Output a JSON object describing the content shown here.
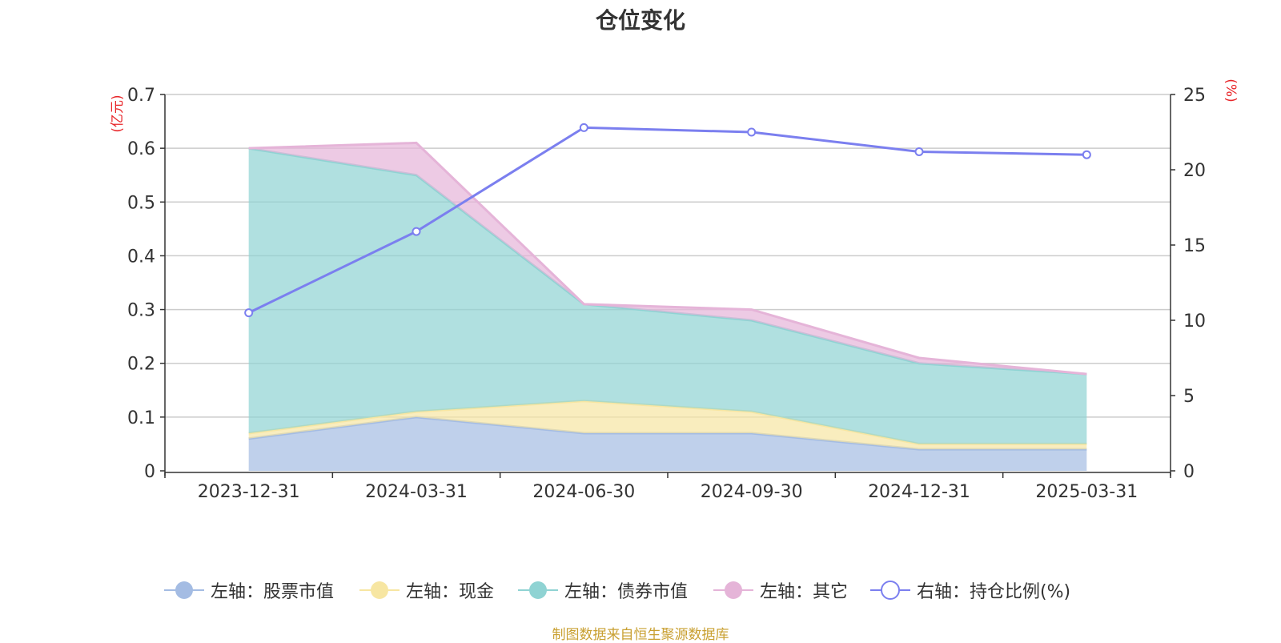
{
  "chart_data": {
    "type": "area",
    "title": "仓位变化",
    "x": [
      "2023-12-31",
      "2024-03-31",
      "2024-06-30",
      "2024-09-30",
      "2024-12-31",
      "2025-03-31"
    ],
    "left_axis": {
      "label": "(亿元)",
      "ylim": [
        0,
        0.7
      ],
      "ticks": [
        "0",
        "0.1",
        "0.2",
        "0.3",
        "0.4",
        "0.5",
        "0.6",
        "0.7"
      ]
    },
    "right_axis": {
      "label": "(%)",
      "ylim": [
        0,
        25
      ],
      "ticks": [
        "0",
        "5",
        "10",
        "15",
        "20",
        "25"
      ]
    },
    "stacked": true,
    "series": [
      {
        "name": "左轴：股票市值",
        "axis": "left",
        "type": "area",
        "color": "#a4bce3",
        "values": [
          0.06,
          0.1,
          0.07,
          0.07,
          0.04,
          0.04
        ]
      },
      {
        "name": "左轴：现金",
        "axis": "left",
        "type": "area",
        "color": "#f7e6a2",
        "values": [
          0.01,
          0.01,
          0.06,
          0.04,
          0.01,
          0.01
        ]
      },
      {
        "name": "左轴：债券市值",
        "axis": "left",
        "type": "area",
        "color": "#8fd3d3",
        "values": [
          0.53,
          0.44,
          0.18,
          0.17,
          0.15,
          0.13
        ]
      },
      {
        "name": "左轴：其它",
        "axis": "left",
        "type": "area",
        "color": "#e5b4d8",
        "values": [
          0.0,
          0.06,
          0.0,
          0.02,
          0.01,
          0.0
        ]
      },
      {
        "name": "右轴：持仓比例(%)",
        "axis": "right",
        "type": "line",
        "color": "#7b7fef",
        "values": [
          10.5,
          15.9,
          22.8,
          22.5,
          21.2,
          21.0
        ]
      }
    ],
    "grid": true,
    "legend_position": "bottom"
  },
  "source_note": "制图数据来自恒生聚源数据库"
}
